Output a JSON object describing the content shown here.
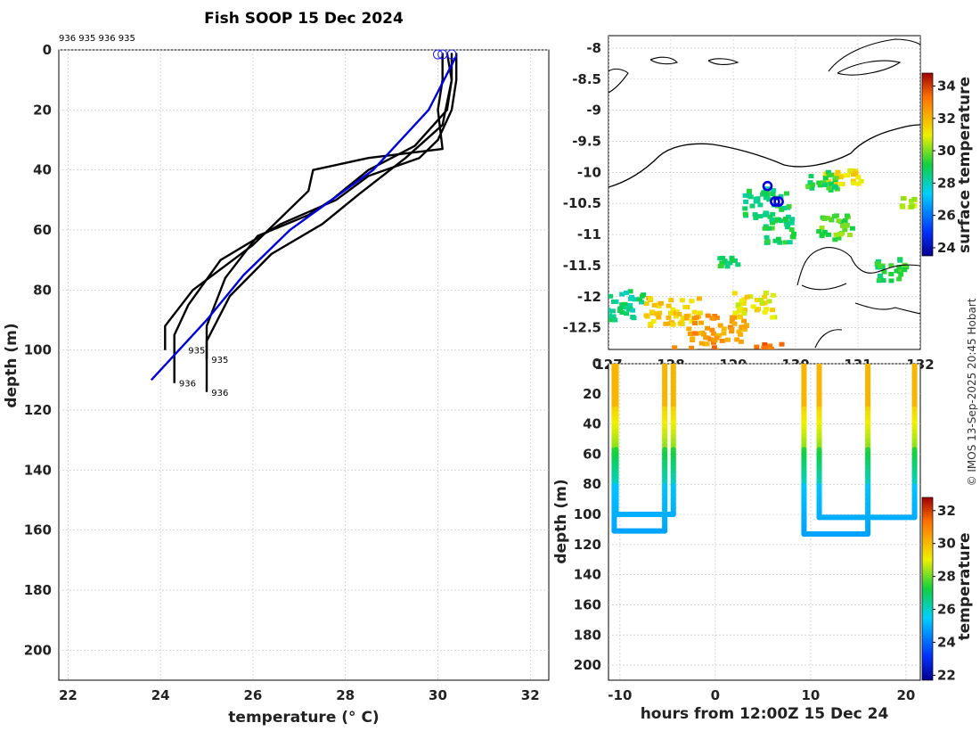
{
  "chart_data": [
    {
      "type": "line",
      "title": "Fish SOOP 15 Dec 2024",
      "top_annotation": "936 935 936 935",
      "xlabel": "temperature (° C)",
      "ylabel": "depth (m)",
      "xlim": [
        21.8,
        32.4
      ],
      "ylim": [
        0,
        210
      ],
      "xticks": [
        22,
        24,
        26,
        28,
        30,
        32
      ],
      "yticks": [
        0,
        20,
        40,
        60,
        80,
        100,
        120,
        140,
        160,
        180,
        200
      ],
      "reference_profile": {
        "color": "#0000dd",
        "temperature": [
          23.8,
          25.0,
          25.8,
          26.8,
          28.6,
          29.8,
          30.4
        ],
        "depth": [
          110,
          90,
          75,
          60,
          40,
          20,
          2
        ]
      },
      "series": [
        {
          "name": "936",
          "temperature": [
            30.4,
            30.4,
            30.3,
            30.0,
            29.6,
            28.5,
            27.8,
            26.6,
            25.3,
            24.6,
            24.3,
            24.3
          ],
          "depth": [
            1,
            10,
            20,
            30,
            36,
            42,
            50,
            58,
            70,
            85,
            95,
            111
          ]
        },
        {
          "name": "935",
          "temperature": [
            30.3,
            30.3,
            30.2,
            29.5,
            28.5,
            27.7,
            27.2,
            26.1,
            25.4,
            25.0,
            25.0
          ],
          "depth": [
            1,
            10,
            20,
            32,
            40,
            50,
            55,
            62,
            76,
            92,
            103
          ]
        },
        {
          "name": "936",
          "temperature": [
            30.1,
            30.1,
            30.0,
            30.1,
            28.5,
            27.3,
            27.2,
            26.0,
            24.7,
            24.1,
            24.1
          ],
          "depth": [
            1,
            10,
            20,
            33,
            36,
            40,
            47,
            65,
            80,
            92,
            100
          ]
        },
        {
          "name": "935",
          "temperature": [
            30.2,
            30.3,
            30.1,
            29.3,
            28.3,
            27.5,
            26.4,
            25.5,
            25.0,
            25.0
          ],
          "depth": [
            1,
            10,
            25,
            36,
            48,
            58,
            68,
            82,
            97,
            114
          ]
        }
      ],
      "profile_labels": [
        {
          "text": "936",
          "temperature": 24.4,
          "depth": 111
        },
        {
          "text": "935",
          "temperature": 25.1,
          "depth": 103
        },
        {
          "text": "936",
          "temperature": 25.1,
          "depth": 114
        },
        {
          "text": "935",
          "temperature": 24.6,
          "depth": 100
        }
      ],
      "start_markers_temperature": [
        30.0,
        30.1,
        30.3
      ]
    },
    {
      "type": "heatmap",
      "subtype": "map",
      "ylim": [
        -12.85,
        -7.8
      ],
      "xlim": [
        127.0,
        132.0
      ],
      "yticks": [
        -8,
        -8.5,
        -9,
        -9.5,
        -10,
        -10.5,
        -11,
        -11.5,
        -12,
        -12.5
      ],
      "xticks": [
        127,
        128,
        129,
        130,
        131,
        132
      ],
      "ytick_labels": [
        "-8",
        "-8.5",
        "-9",
        "-9.5",
        "-10",
        "-10.5",
        "-11",
        "-11.5",
        "-12",
        "-12.5"
      ],
      "xtick_labels": [
        "127",
        "128",
        "129",
        "130",
        "131",
        "132"
      ],
      "colorbar_label": "surface temperature",
      "colorbar_range": [
        23.5,
        34.8
      ],
      "colorbar_ticks": [
        24,
        26,
        28,
        30,
        32,
        34
      ],
      "profile_locations": [
        {
          "lon": 129.55,
          "lat": -10.22
        },
        {
          "lon": 129.67,
          "lat": -10.47
        },
        {
          "lon": 129.73,
          "lat": -10.47
        }
      ]
    },
    {
      "type": "scatter",
      "xlabel": "hours from 12:00Z 15 Dec 24",
      "ylabel": "depth (m)",
      "xlim": [
        -11.2,
        21.5
      ],
      "ylim": [
        0,
        210
      ],
      "xticks": [
        -10,
        0,
        10,
        20
      ],
      "yticks": [
        0,
        20,
        40,
        60,
        80,
        100,
        120,
        140,
        160,
        180,
        200
      ],
      "colorbar_label": "temperature",
      "colorbar_range": [
        21.7,
        32.8
      ],
      "colorbar_ticks": [
        22,
        24,
        26,
        28,
        30,
        32
      ],
      "casts": [
        {
          "hours_down": -10.6,
          "hours_up": -5.3,
          "bottom_depth": 111
        },
        {
          "hours_down": -10.4,
          "hours_up": -4.4,
          "bottom_depth": 100
        },
        {
          "hours_down": 9.3,
          "hours_up": 16.0,
          "bottom_depth": 113
        },
        {
          "hours_down": 10.9,
          "hours_up": 20.9,
          "bottom_depth": 102
        }
      ]
    }
  ],
  "credit": "© IMOS 13-Sep-2025 20:45 Hobart"
}
